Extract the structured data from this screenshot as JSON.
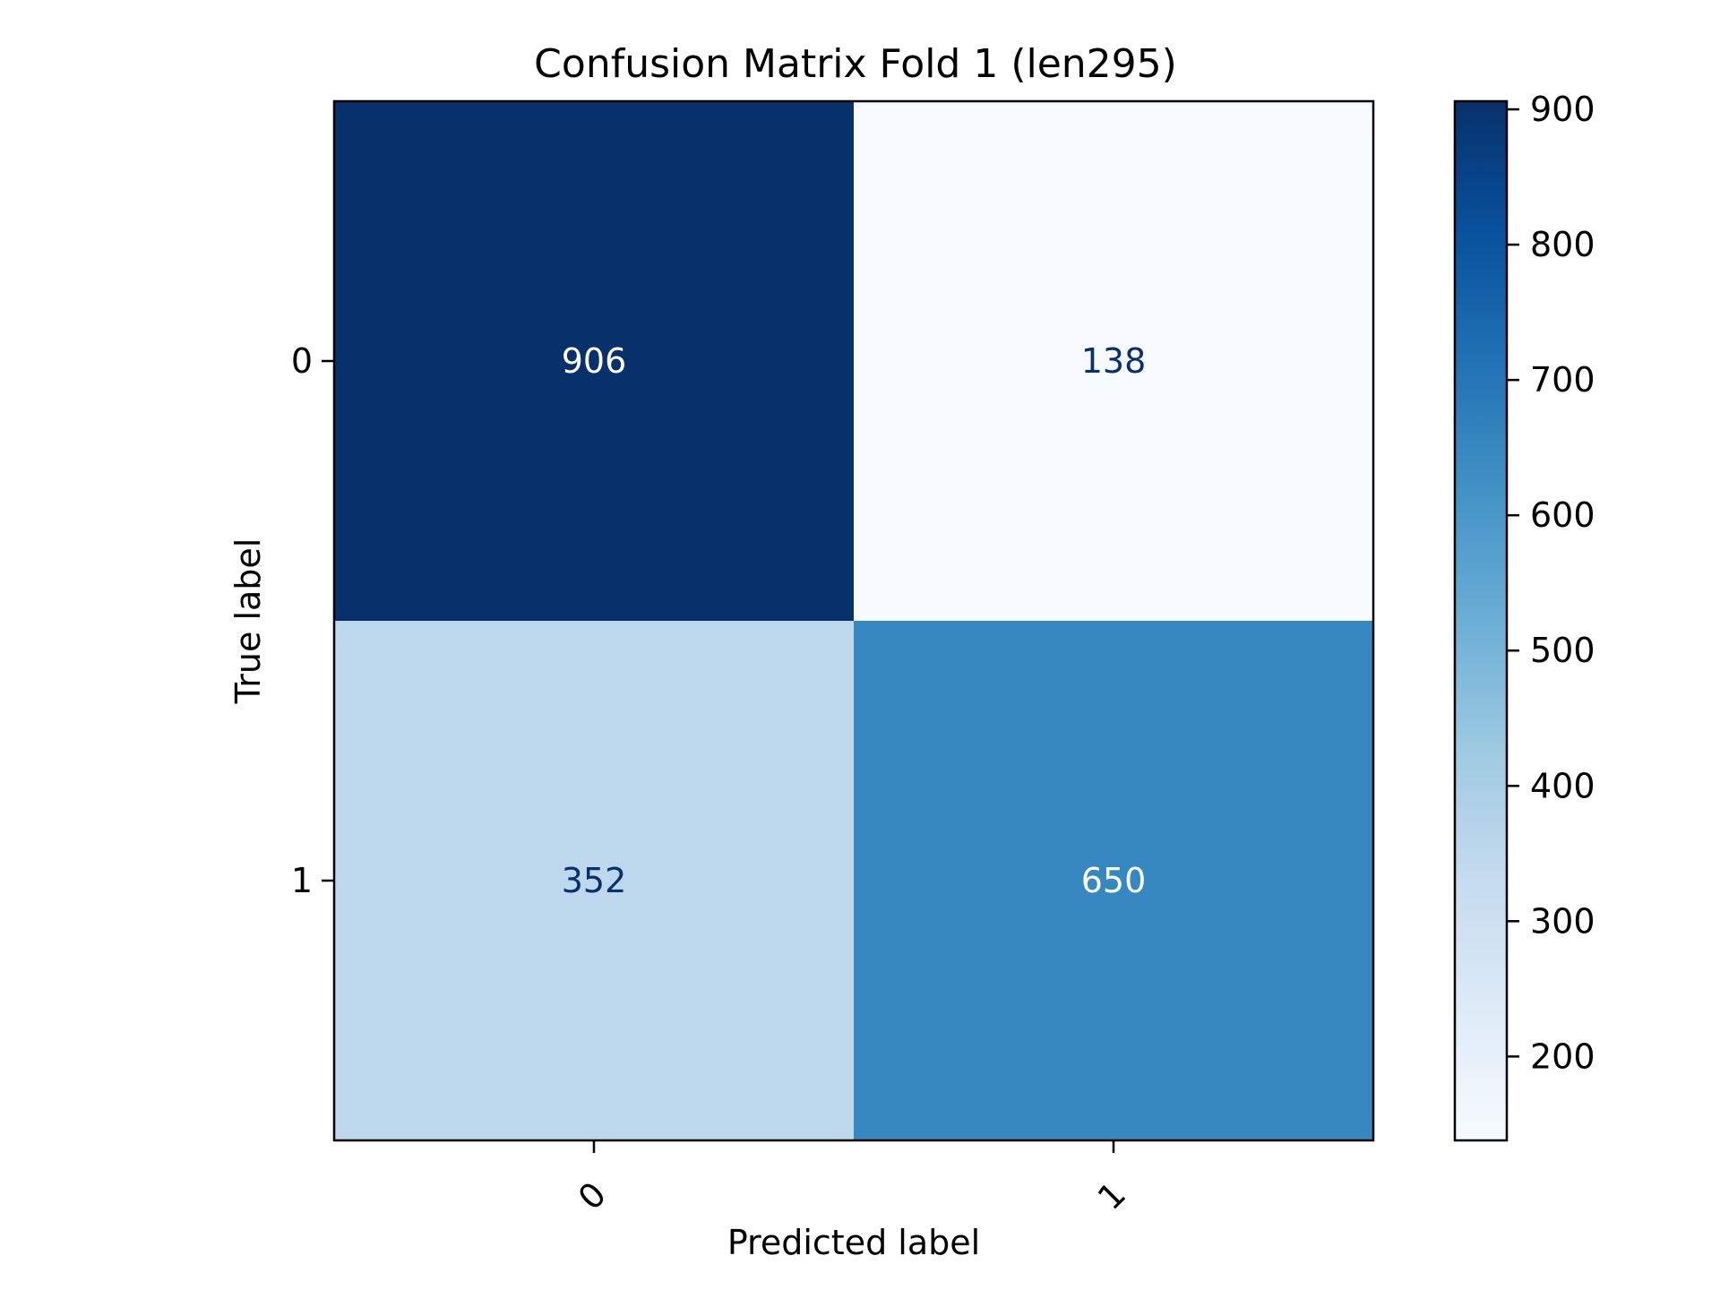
{
  "chart_data": {
    "type": "heatmap",
    "title": "Confusion Matrix Fold 1 (len295)",
    "xlabel": "Predicted label",
    "ylabel": "True label",
    "x_categories": [
      "0",
      "1"
    ],
    "y_categories": [
      "0",
      "1"
    ],
    "matrix": [
      [
        906,
        138
      ],
      [
        352,
        650
      ]
    ],
    "colormap": "Blues",
    "colorbar": {
      "range": [
        138,
        906
      ],
      "ticks": [
        "200",
        "300",
        "400",
        "500",
        "600",
        "700",
        "800",
        "900"
      ],
      "tick_values": [
        200,
        300,
        400,
        500,
        600,
        700,
        800,
        900
      ]
    },
    "x_tick_rotation": "45°",
    "grid": false
  }
}
